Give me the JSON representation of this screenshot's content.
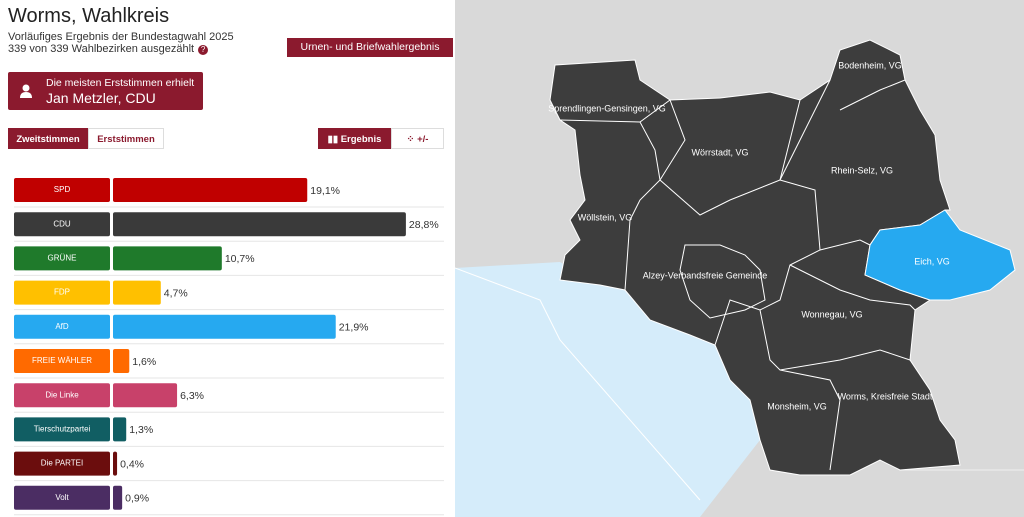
{
  "header": {
    "title": "Worms, Wahlkreis",
    "subtitle": "Vorläufiges Ergebnis der Bundestagwahl 2025",
    "status": "339 von 339 Wahlbezirken ausgezählt",
    "status_icon": "?",
    "mode_button": "Urnen- und Briefwahlergebnis"
  },
  "winner": {
    "caption": "Die meisten Erststimmen erhielt",
    "name": "Jan Metzler, CDU"
  },
  "tabs": {
    "vote_tabs": [
      "Zweitstimmen",
      "Erststimmen"
    ],
    "view_tabs": [
      "Ergebnis",
      "+/-"
    ]
  },
  "chart_data": {
    "type": "bar",
    "categories": [
      "SPD",
      "CDU",
      "GRÜNE",
      "FDP",
      "AfD",
      "FREIE WÄHLER",
      "Die Linke",
      "Tierschutzpartei",
      "Die PARTEI",
      "Volt"
    ],
    "values": [
      19.1,
      28.8,
      10.7,
      4.7,
      21.9,
      1.6,
      6.3,
      1.3,
      0.4,
      0.9
    ],
    "value_labels": [
      "19,1%",
      "28,8%",
      "10,7%",
      "4,7%",
      "21,9%",
      "1,6%",
      "6,3%",
      "1,3%",
      "0,4%",
      "0,9%"
    ],
    "colors": [
      "#c00000",
      "#3a3a3a",
      "#1f7a2b",
      "#ffc000",
      "#26a9f0",
      "#ff6a00",
      "#c8416a",
      "#115e63",
      "#6b0d0d",
      "#4b2d63"
    ]
  },
  "map": {
    "regions": [
      "Bodenheim, VG",
      "Sprendlingen-Gensingen, VG",
      "Wörrstadt, VG",
      "Rhein-Selz, VG",
      "Wöllstein, VG",
      "Eich, VG",
      "Alzey-Verbandsfreie Gemeinde",
      "Wonnegau, VG",
      "Monsheim, VG",
      "Worms, Kreisfreie Stadt"
    ]
  }
}
